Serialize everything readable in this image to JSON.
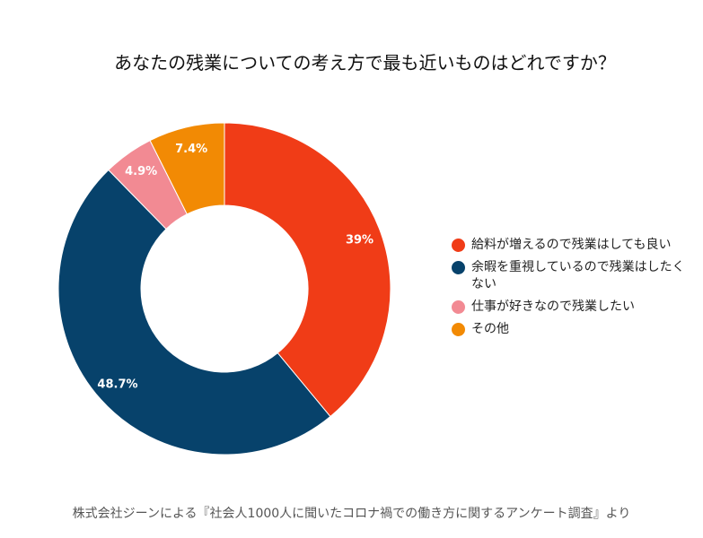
{
  "chart_data": {
    "type": "pie",
    "variant": "donut",
    "title": "あなたの残業についての考え方で最も近いものはどれですか？",
    "categories": [
      "給料が増えるので残業はしても良い",
      "余暇を重視しているので残業はしたくない",
      "仕事が好きなので残業したい",
      "その他"
    ],
    "values": [
      39,
      48.7,
      4.9,
      7.4
    ],
    "labels": [
      "39%",
      "48.7%",
      "4.9%",
      "7.4%"
    ],
    "colors": [
      "#f03c17",
      "#07426b",
      "#f28a93",
      "#f28a04"
    ],
    "legend_position": "right"
  },
  "footnote": "株式会社ジーンによる『社会人1000人に聞いたコロナ禍での働き方に関するアンケート調査』より"
}
